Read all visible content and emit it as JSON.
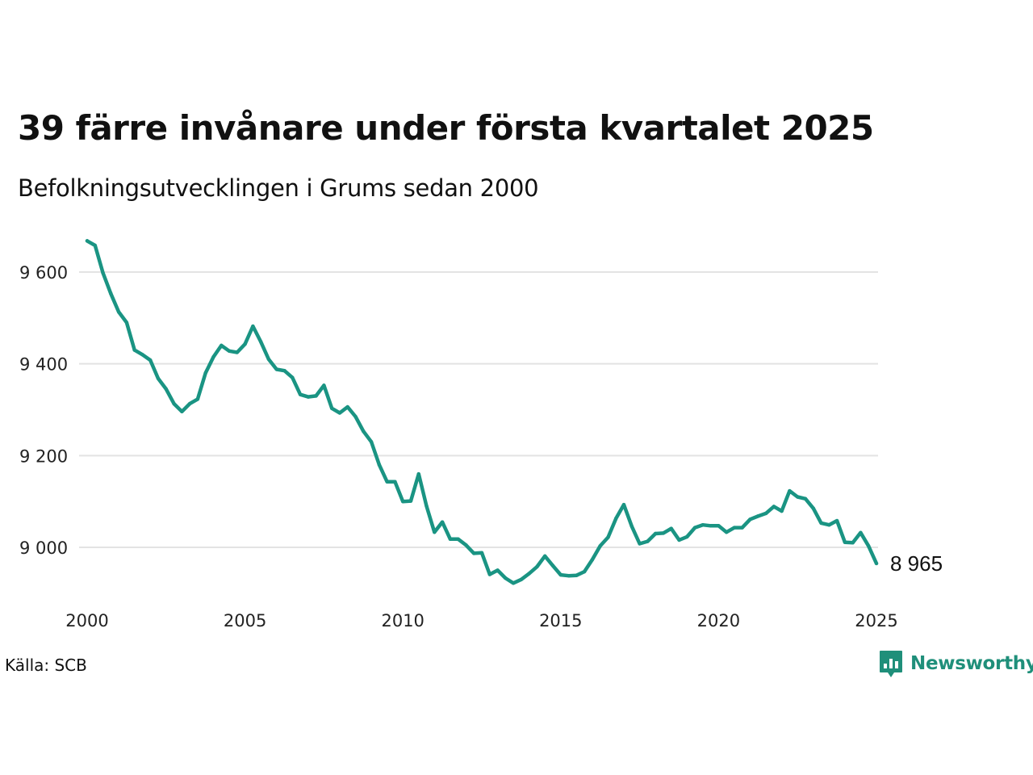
{
  "title": "39 färre invånare under första kvartalet 2025",
  "subtitle": "Befolkningsutvecklingen i Grums sedan 2000",
  "source": "Källa: SCB",
  "brand": "Newsworthy",
  "colors": {
    "line": "#1a9483",
    "grid": "#e3e3e3",
    "brand": "#1f8f7a"
  },
  "chart_data": {
    "type": "line",
    "title": "39 färre invånare under första kvartalet 2025",
    "subtitle": "Befolkningsutvecklingen i Grums sedan 2000",
    "xlabel": "",
    "ylabel": "",
    "xlim": [
      2000,
      2025
    ],
    "ylim": [
      8900,
      9700
    ],
    "x_ticks": [
      "2000",
      "2005",
      "2010",
      "2015",
      "2020",
      "2025"
    ],
    "y_ticks": [
      {
        "value": 9000,
        "label": "9 000"
      },
      {
        "value": 9200,
        "label": "9 200"
      },
      {
        "value": 9400,
        "label": "9 400"
      },
      {
        "value": 9600,
        "label": "9 600"
      }
    ],
    "grid": "horizontal",
    "last_value_label": "8 965",
    "series": [
      {
        "x": [
          "2000 Q1",
          "2000 Q2",
          "2000 Q3",
          "2000 Q4",
          "2001 Q1",
          "2001 Q2",
          "2001 Q3",
          "2001 Q4",
          "2002 Q1",
          "2002 Q2",
          "2002 Q3",
          "2002 Q4",
          "2003 Q1",
          "2003 Q2",
          "2003 Q3",
          "2003 Q4",
          "2004 Q1",
          "2004 Q2",
          "2004 Q3",
          "2004 Q4",
          "2005 Q1",
          "2005 Q2",
          "2005 Q3",
          "2005 Q4",
          "2006 Q1",
          "2006 Q2",
          "2006 Q3",
          "2006 Q4",
          "2007 Q1",
          "2007 Q2",
          "2007 Q3",
          "2007 Q4",
          "2008 Q1",
          "2008 Q2",
          "2008 Q3",
          "2008 Q4",
          "2009 Q1",
          "2009 Q2",
          "2009 Q3",
          "2009 Q4",
          "2010 Q1",
          "2010 Q2",
          "2010 Q3",
          "2010 Q4",
          "2011 Q1",
          "2011 Q2",
          "2011 Q3",
          "2011 Q4",
          "2012 Q1",
          "2012 Q2",
          "2012 Q3",
          "2012 Q4",
          "2013 Q1",
          "2013 Q2",
          "2013 Q3",
          "2013 Q4",
          "2014 Q1",
          "2014 Q2",
          "2014 Q3",
          "2014 Q4",
          "2015 Q1",
          "2015 Q2",
          "2015 Q3",
          "2015 Q4",
          "2016 Q1",
          "2016 Q2",
          "2016 Q3",
          "2016 Q4",
          "2017 Q1",
          "2017 Q2",
          "2017 Q3",
          "2017 Q4",
          "2018 Q1",
          "2018 Q2",
          "2018 Q3",
          "2018 Q4",
          "2019 Q1",
          "2019 Q2",
          "2019 Q3",
          "2019 Q4",
          "2020 Q1",
          "2020 Q2",
          "2020 Q3",
          "2020 Q4",
          "2021 Q1",
          "2021 Q2",
          "2021 Q3",
          "2021 Q4",
          "2022 Q1",
          "2022 Q2",
          "2022 Q3",
          "2022 Q4",
          "2023 Q1",
          "2023 Q2",
          "2023 Q3",
          "2023 Q4",
          "2024 Q1",
          "2024 Q2",
          "2024 Q3",
          "2024 Q4",
          "2025 Q1"
        ],
        "values": [
          9668,
          9658,
          9598,
          9553,
          9513,
          9490,
          9430,
          9420,
          9408,
          9368,
          9345,
          9313,
          9296,
          9313,
          9323,
          9380,
          9415,
          9440,
          9428,
          9425,
          9443,
          9482,
          9448,
          9410,
          9388,
          9385,
          9370,
          9333,
          9328,
          9330,
          9353,
          9303,
          9293,
          9306,
          9285,
          9253,
          9230,
          9180,
          9143,
          9143,
          9100,
          9101,
          9160,
          9090,
          9033,
          9055,
          9018,
          9018,
          9005,
          8987,
          8988,
          8941,
          8950,
          8933,
          8922,
          8930,
          8943,
          8958,
          8981,
          8960,
          8940,
          8938,
          8939,
          8947,
          8973,
          9003,
          9022,
          9063,
          9093,
          9046,
          9008,
          9013,
          9030,
          9031,
          9041,
          9016,
          9023,
          9043,
          9049,
          9047,
          9047,
          9033,
          9043,
          9043,
          9061,
          9068,
          9074,
          9089,
          9079,
          9123,
          9110,
          9106,
          9085,
          9053,
          9049,
          9058,
          9011,
          9010,
          9032,
          9003,
          8965
        ]
      }
    ]
  }
}
